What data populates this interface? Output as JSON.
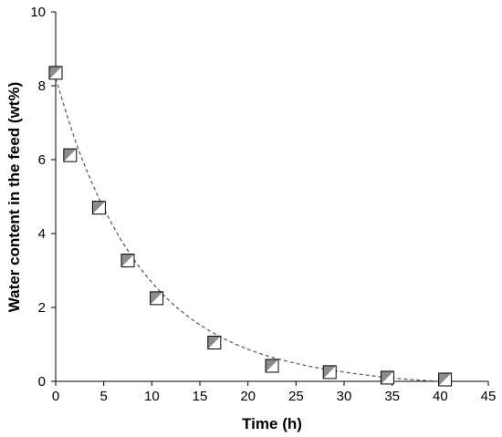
{
  "chart_data": {
    "type": "scatter",
    "xlabel": "Time (h)",
    "ylabel": "Water content in the feed (wt%)",
    "xlim": [
      0,
      45
    ],
    "ylim": [
      0,
      10
    ],
    "xticks": [
      0,
      5,
      10,
      15,
      20,
      25,
      30,
      35,
      40,
      45
    ],
    "yticks": [
      0,
      2,
      4,
      6,
      8,
      10
    ],
    "grid": false,
    "legend": "none",
    "marker": "half-filled-square",
    "marker_fill_color": "#8c8c8c",
    "series": [
      {
        "x": [
          0,
          1.5,
          4.5,
          7.5,
          10.5,
          16.5,
          22.5,
          28.5,
          34.5,
          40.5
        ],
        "y": [
          8.35,
          6.12,
          4.7,
          3.27,
          2.25,
          1.05,
          0.42,
          0.25,
          0.1,
          0.05
        ]
      }
    ],
    "fit_curve": {
      "style": "dashed",
      "color": "#606060",
      "x": [
        0,
        2,
        4,
        6,
        8,
        10,
        12,
        14,
        16,
        18,
        20,
        22,
        24,
        26,
        28,
        30,
        32,
        34,
        36,
        38,
        40
      ],
      "y": [
        8.2,
        6.55,
        5.24,
        4.19,
        3.35,
        2.68,
        2.14,
        1.71,
        1.37,
        1.09,
        0.87,
        0.69,
        0.55,
        0.43,
        0.33,
        0.25,
        0.18,
        0.12,
        0.07,
        0.03,
        0.0
      ]
    }
  }
}
